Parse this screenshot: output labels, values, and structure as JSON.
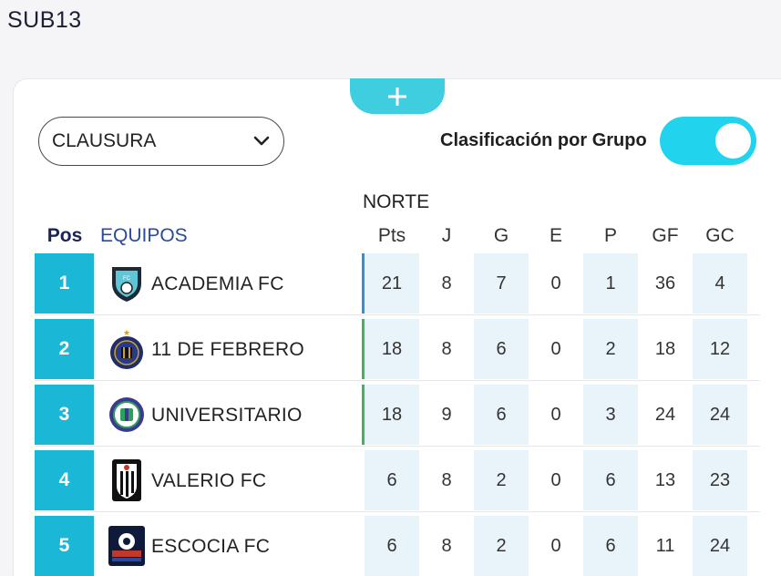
{
  "page": {
    "title": "SUB13"
  },
  "season_select": {
    "value": "CLAUSURA"
  },
  "toggle": {
    "label": "Clasificación por Grupo",
    "on": true
  },
  "group": {
    "name": "NORTE"
  },
  "table": {
    "headers": {
      "pos": "Pos",
      "team": "EQUIPOS",
      "pts": "Pts",
      "j": "J",
      "g": "G",
      "e": "E",
      "p": "P",
      "gf": "GF",
      "gc": "GC"
    },
    "rows": [
      {
        "pos": "1",
        "team": "ACADEMIA FC",
        "pts": "21",
        "j": "8",
        "g": "7",
        "e": "0",
        "p": "1",
        "gf": "36",
        "gc": "4",
        "zone_color": "#2f8fe0",
        "logo": "shield-logo"
      },
      {
        "pos": "2",
        "team": "11 DE FEBRERO",
        "pts": "18",
        "j": "8",
        "g": "6",
        "e": "0",
        "p": "2",
        "gf": "18",
        "gc": "12",
        "zone_color": "#3fb45a",
        "logo": "round-crest-logo"
      },
      {
        "pos": "3",
        "team": "UNIVERSITARIO",
        "pts": "18",
        "j": "9",
        "g": "6",
        "e": "0",
        "p": "3",
        "gf": "24",
        "gc": "24",
        "zone_color": "#3fb45a",
        "logo": "round-crest-logo"
      },
      {
        "pos": "4",
        "team": "VALERIO FC",
        "pts": "6",
        "j": "8",
        "g": "2",
        "e": "0",
        "p": "6",
        "gf": "13",
        "gc": "23",
        "zone_color": "",
        "logo": "striped-shield-logo"
      },
      {
        "pos": "5",
        "team": "ESCOCIA FC",
        "pts": "6",
        "j": "8",
        "g": "2",
        "e": "0",
        "p": "6",
        "gf": "11",
        "gc": "24",
        "zone_color": "",
        "logo": "square-badge-logo"
      }
    ]
  }
}
